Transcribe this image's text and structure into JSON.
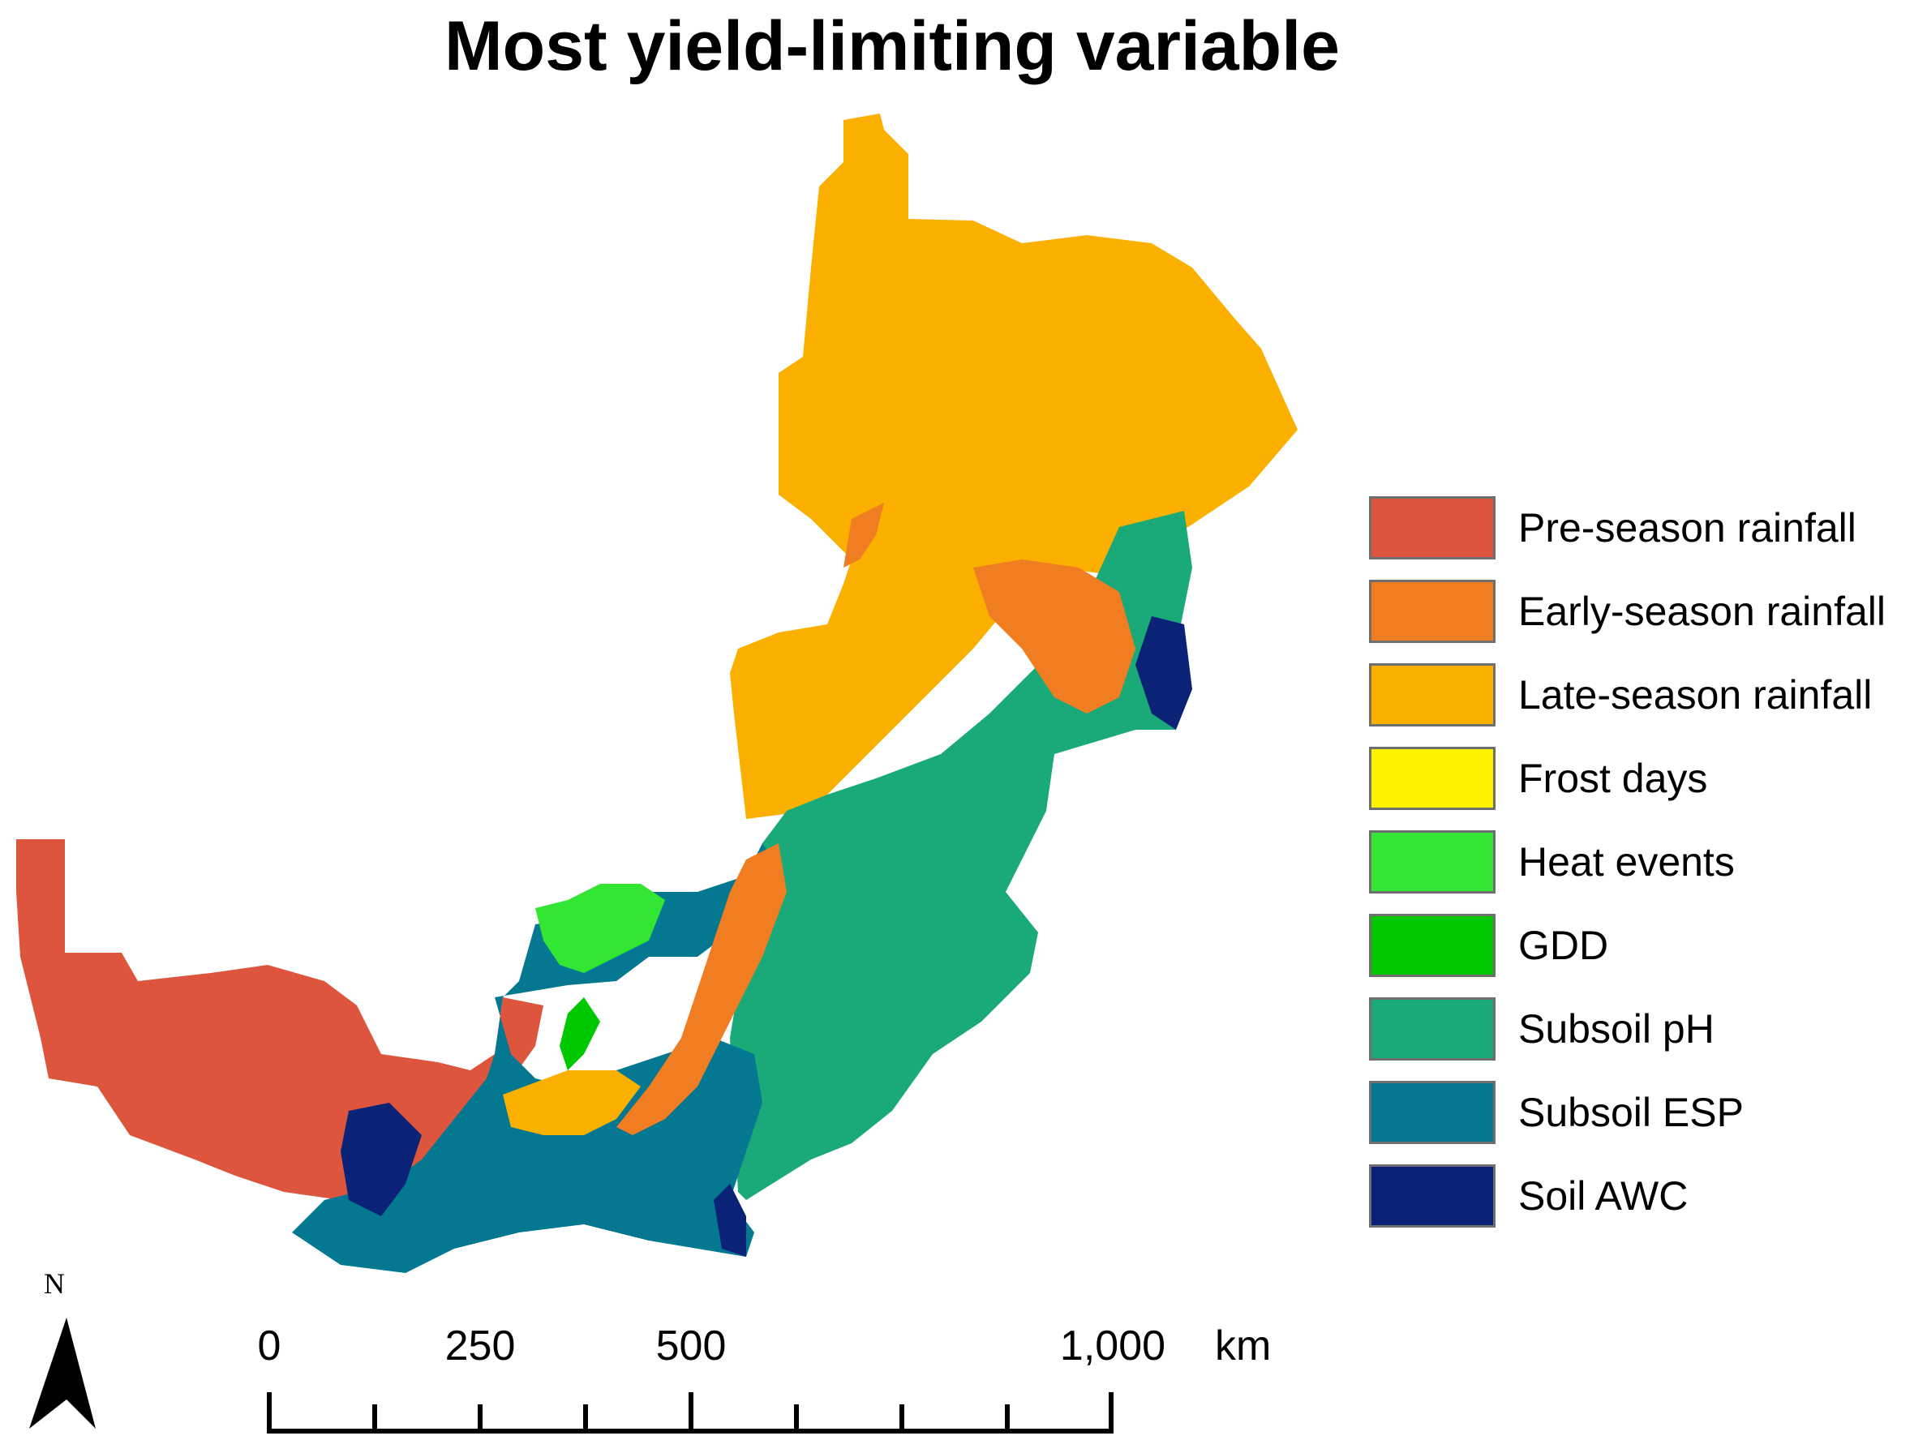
{
  "title": "Most yield-limiting variable",
  "legend": [
    {
      "label": "Pre-season rainfall",
      "color": "#dc553c"
    },
    {
      "label": "Early-season rainfall",
      "color": "#f07d22"
    },
    {
      "label": "Late-season rainfall",
      "color": "#fbb000"
    },
    {
      "label": "Frost days",
      "color": "#fff200"
    },
    {
      "label": "Heat events",
      "color": "#33e633"
    },
    {
      "label": "GDD",
      "color": "#00c800"
    },
    {
      "label": "Subsoil pH",
      "color": "#1aa978"
    },
    {
      "label": "Subsoil ESP",
      "color": "#037890"
    },
    {
      "label": "Soil AWC",
      "color": "#0a2377"
    }
  ],
  "scale": {
    "ticks": [
      "0",
      "250",
      "500",
      "1,000"
    ],
    "unit": "km"
  },
  "north_arrow": {
    "label": "N"
  }
}
